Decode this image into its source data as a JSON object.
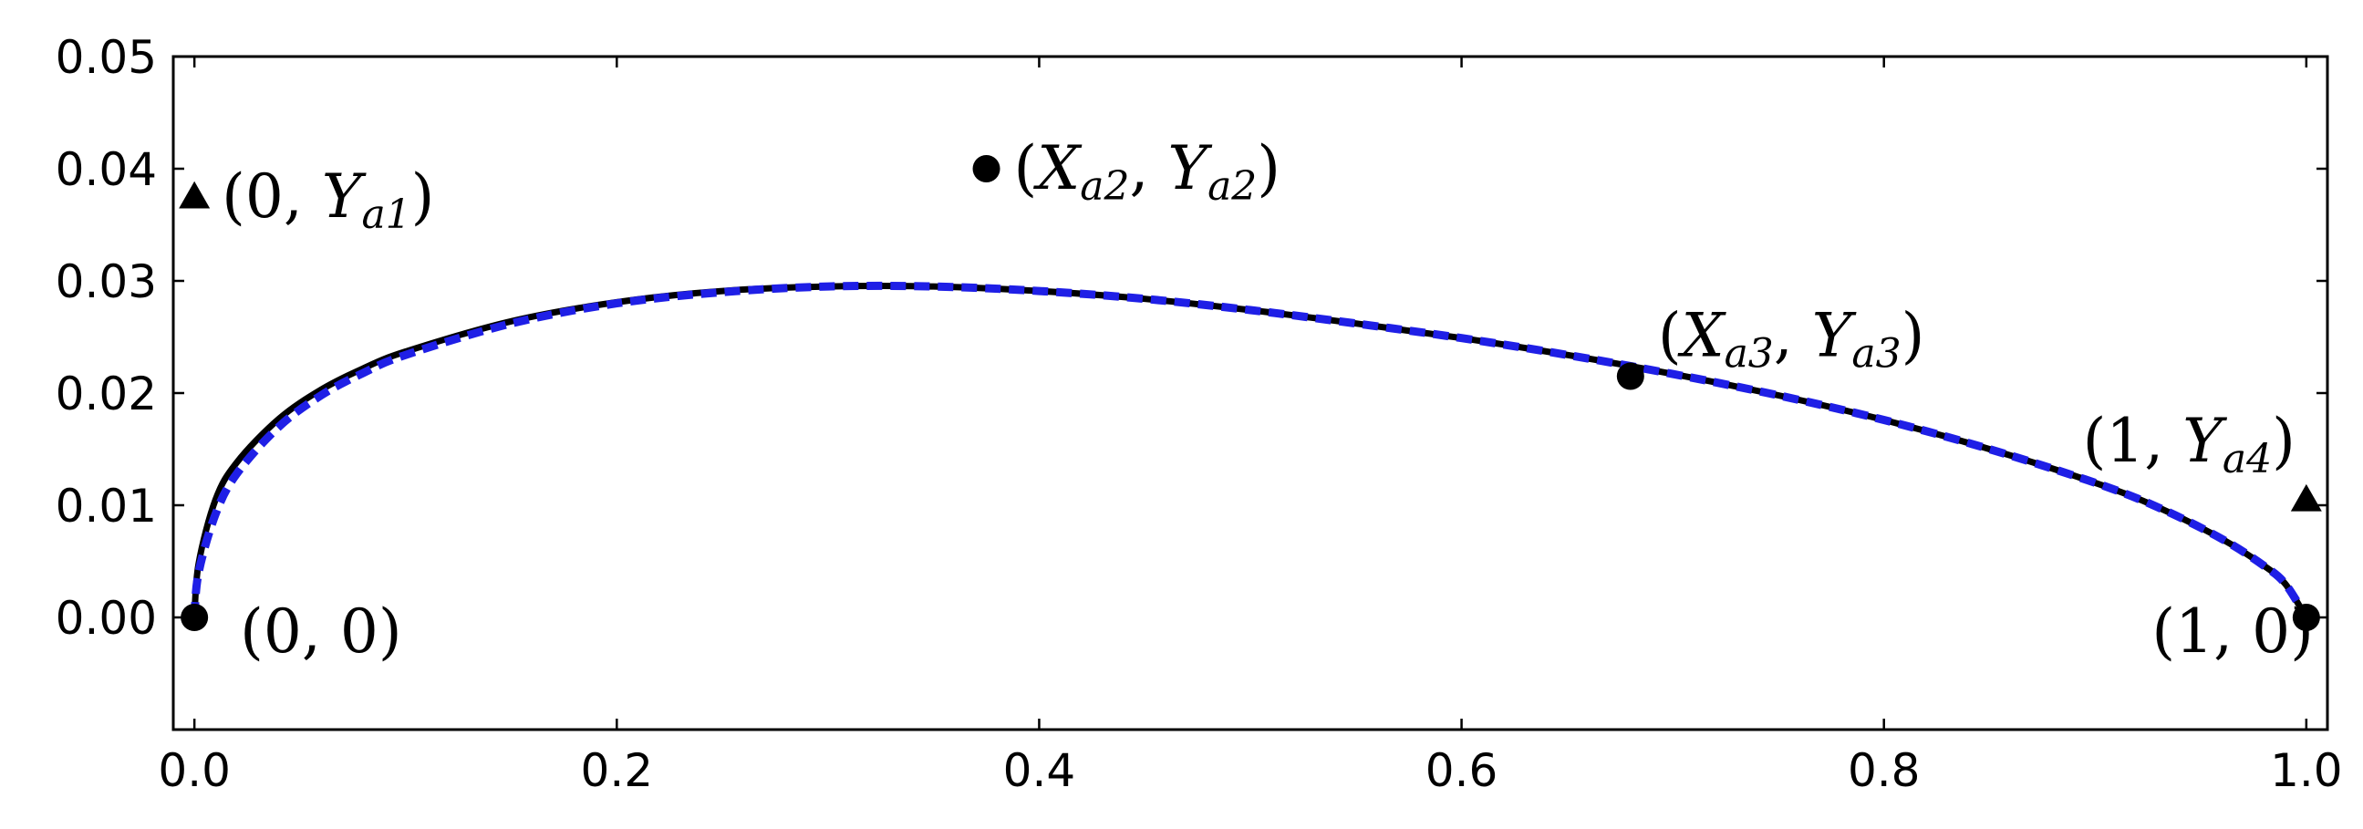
{
  "chart_data": {
    "type": "line",
    "xlim": [
      -0.01,
      1.01
    ],
    "ylim": [
      -0.01,
      0.05
    ],
    "x_ticks": [
      0.0,
      0.2,
      0.4,
      0.6,
      0.8,
      1.0
    ],
    "x_tick_labels": [
      "0.0",
      "0.2",
      "0.4",
      "0.6",
      "0.8",
      "1.0"
    ],
    "y_ticks": [
      0.0,
      0.01,
      0.02,
      0.03,
      0.04,
      0.05
    ],
    "y_tick_labels": [
      "0.00",
      "0.01",
      "0.02",
      "0.03",
      "0.04",
      "0.05"
    ],
    "grid": false,
    "series": [
      {
        "style": "solid",
        "color": "#000000",
        "x": [
          0.0,
          0.002,
          0.01,
          0.02,
          0.04,
          0.06,
          0.08,
          0.1,
          0.15,
          0.2,
          0.25,
          0.3,
          0.35,
          0.4,
          0.45,
          0.5,
          0.55,
          0.6,
          0.65,
          0.7,
          0.75,
          0.8,
          0.85,
          0.9,
          0.93,
          0.96,
          0.98,
          0.99,
          1.0
        ],
        "y": [
          0.0,
          0.0048,
          0.0105,
          0.0138,
          0.0177,
          0.0203,
          0.0222,
          0.0237,
          0.0264,
          0.0281,
          0.0291,
          0.0295,
          0.0295,
          0.0291,
          0.0284,
          0.0274,
          0.0262,
          0.0249,
          0.0234,
          0.0217,
          0.0198,
          0.0176,
          0.015,
          0.012,
          0.0098,
          0.007,
          0.0046,
          0.003,
          0.0
        ]
      },
      {
        "style": "dashed",
        "color": "#1f1fe6",
        "x": [
          0.0,
          0.002,
          0.01,
          0.02,
          0.04,
          0.06,
          0.08,
          0.1,
          0.15,
          0.2,
          0.25,
          0.3,
          0.35,
          0.4,
          0.45,
          0.5,
          0.55,
          0.6,
          0.65,
          0.7,
          0.75,
          0.8,
          0.85,
          0.9,
          0.93,
          0.96,
          0.98,
          0.99,
          1.0
        ],
        "y": [
          0.0,
          0.004,
          0.0092,
          0.0128,
          0.017,
          0.0198,
          0.0218,
          0.0234,
          0.0262,
          0.028,
          0.029,
          0.0295,
          0.0295,
          0.0291,
          0.0284,
          0.0274,
          0.0262,
          0.0249,
          0.0234,
          0.0217,
          0.0198,
          0.0176,
          0.015,
          0.012,
          0.0098,
          0.007,
          0.0046,
          0.003,
          0.0
        ]
      }
    ],
    "points": [
      {
        "marker": "circle",
        "x": 0.0,
        "y": 0.0,
        "label": "(0, 0)",
        "label_side": "right-below"
      },
      {
        "marker": "triangle",
        "x": 0.0,
        "y": 0.0375,
        "label_parts": [
          "(0, ",
          "Y",
          "a1",
          ")"
        ],
        "label_side": "right"
      },
      {
        "marker": "circle",
        "x": 0.375,
        "y": 0.04,
        "label_parts": [
          "(",
          "X",
          "a2",
          ", ",
          "Y",
          "a2",
          ")"
        ],
        "label_side": "right"
      },
      {
        "marker": "circle",
        "x": 0.68,
        "y": 0.0215,
        "label_parts": [
          "(",
          "X",
          "a3",
          ", ",
          "Y",
          "a3",
          ")"
        ],
        "label_side": "right-above"
      },
      {
        "marker": "triangle",
        "x": 1.0,
        "y": 0.0105,
        "label_parts": [
          "(1, ",
          "Y",
          "a4",
          ")"
        ],
        "label_side": "left-above"
      },
      {
        "marker": "circle",
        "x": 1.0,
        "y": 0.0,
        "label": "(1, 0)",
        "label_side": "left-below"
      }
    ],
    "colors": {
      "solid_line": "#000000",
      "dashed_line": "#1f1fe6",
      "markers": "#000000"
    }
  }
}
